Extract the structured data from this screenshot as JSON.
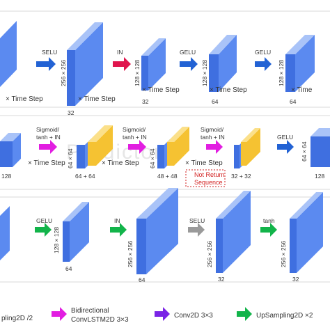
{
  "colors": {
    "block_front": "#3f6fe0",
    "block_side": "#5b8af0",
    "block_top": "#a9c3f8",
    "yellow_front": "#f5c232",
    "yellow_top": "#fbe08a",
    "arrow_blue": "#2262d4",
    "arrow_red": "#e0154d",
    "arrow_magenta": "#e21ee1",
    "arrow_purple": "#7a24e6",
    "arrow_green": "#12b44a",
    "arrow_grey": "#9a9a9a",
    "panel_border": "#d8d8d8",
    "annotation": "#d21f1f"
  },
  "watermark": "Predictor",
  "row1": {
    "time_step_left": "× Time Step",
    "arrows": [
      {
        "label": "SELU",
        "icon": "arrow-blue-icon"
      },
      {
        "label": "IN",
        "icon": "arrow-red-icon"
      },
      {
        "label": "GELU",
        "icon": "arrow-blue-icon"
      },
      {
        "label": "GELU",
        "icon": "arrow-blue-icon"
      }
    ],
    "blocks": [
      {
        "side": "256 × 256",
        "bottom": "32",
        "time": "× Time Step"
      },
      {
        "side": "128 × 128",
        "bottom": "32",
        "time": "× Time Step"
      },
      {
        "side": "128 × 128",
        "bottom": "64",
        "time": "× Time Step"
      },
      {
        "side": "128 × 128",
        "bottom": "64",
        "time": "× Time"
      }
    ]
  },
  "row2": {
    "left_label": "128",
    "time_step_left": "× Time Step",
    "arrows": [
      {
        "label1": "Sigmoid/",
        "label2": "tanh + IN",
        "icon": "arrow-magenta-icon"
      },
      {
        "label1": "Sigmoid/",
        "label2": "tanh + IN",
        "icon": "arrow-magenta-icon"
      },
      {
        "label1": "Sigmoid/",
        "label2": "tanh + IN",
        "icon": "arrow-magenta-icon"
      },
      {
        "label1": "GELU",
        "label2": "",
        "icon": "arrow-blue-icon"
      }
    ],
    "blocks": [
      {
        "side": "64 × 64",
        "bottom": "64 + 64",
        "time": "× Time Step"
      },
      {
        "side": "64 × 64",
        "bottom": "48 + 48",
        "time": "× Time Step"
      },
      {
        "side": "",
        "bottom": "32 + 32",
        "time": "× Time Step"
      },
      {
        "side": "64 × 64",
        "bottom": "128",
        "time": ""
      }
    ],
    "annotation_line1": "Not Return",
    "annotation_line2": "Sequence"
  },
  "row3": {
    "arrows": [
      {
        "label": "GELU",
        "icon": "arrow-green-icon"
      },
      {
        "label": "IN",
        "icon": "arrow-green-icon"
      },
      {
        "label": "SELU",
        "icon": "arrow-grey-icon"
      },
      {
        "label": "tanh",
        "icon": "arrow-green-icon"
      }
    ],
    "blocks": [
      {
        "side": "128 × 128",
        "bottom": "64"
      },
      {
        "side": "256 × 256",
        "bottom": "64"
      },
      {
        "side": "256 × 256",
        "bottom": "32"
      },
      {
        "side": "256 × 256",
        "bottom": "32"
      }
    ]
  },
  "legend": [
    {
      "label1": "pling2D /2",
      "label2": "",
      "icon": "arrow-blue-icon"
    },
    {
      "label1": "Bidirectional",
      "label2": "ConvLSTM2D 3×3",
      "icon": "arrow-magenta-icon"
    },
    {
      "label1": "Conv2D 3×3",
      "label2": "",
      "icon": "arrow-purple-icon"
    },
    {
      "label1": "UpSampling2D ×2",
      "label2": "",
      "icon": "arrow-green-icon"
    }
  ]
}
